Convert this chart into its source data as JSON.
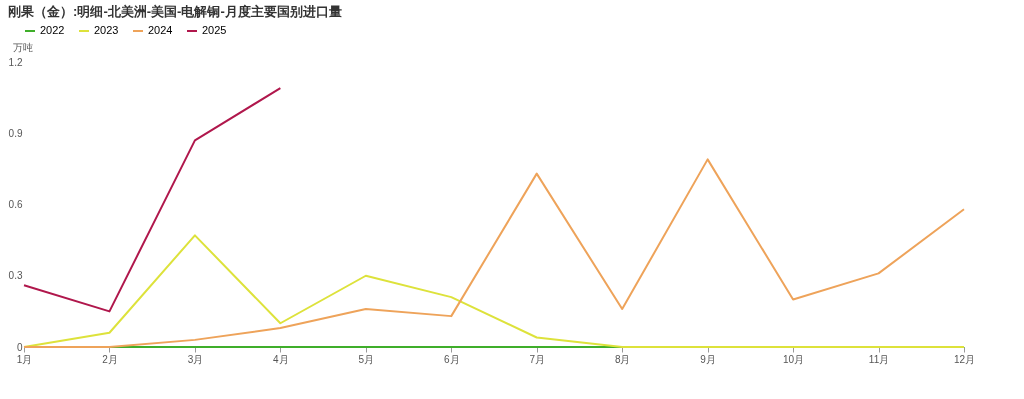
{
  "chart_data": {
    "type": "line",
    "title": "刚果（金）:明细-北美洲-美国-电解铜-月度主要国别进口量",
    "ylabel": "万吨",
    "categories": [
      "1月",
      "2月",
      "3月",
      "4月",
      "5月",
      "6月",
      "7月",
      "8月",
      "9月",
      "10月",
      "11月",
      "12月"
    ],
    "series": [
      {
        "name": "2022",
        "color": "#3fae2a",
        "values": [
          0,
          0,
          0,
          0,
          0,
          0,
          0,
          0,
          0,
          0,
          0,
          0
        ]
      },
      {
        "name": "2023",
        "color": "#dde23b",
        "values": [
          0,
          0.06,
          0.47,
          0.1,
          0.3,
          0.21,
          0.04,
          0,
          0,
          0,
          0,
          0
        ]
      },
      {
        "name": "2024",
        "color": "#eea35a",
        "values": [
          0,
          0,
          0.03,
          0.08,
          0.16,
          0.13,
          0.73,
          0.16,
          0.79,
          0.2,
          0.31,
          0.58
        ]
      },
      {
        "name": "2025",
        "color": "#b0174c",
        "values": [
          0.26,
          0.15,
          0.87,
          1.09,
          null,
          null,
          null,
          null,
          null,
          null,
          null,
          null
        ]
      }
    ],
    "ylim": [
      0,
      1.2
    ],
    "yticks": [
      0,
      0.3,
      0.6,
      0.9,
      1.2
    ],
    "grid": false,
    "legend": "top left",
    "marker": "none"
  }
}
